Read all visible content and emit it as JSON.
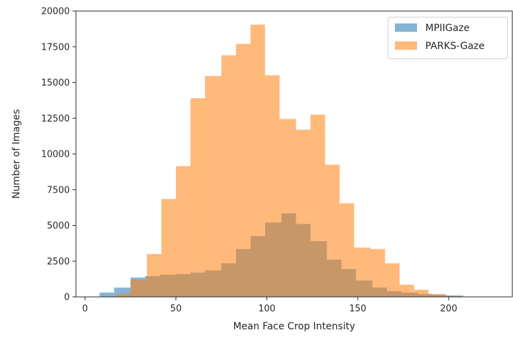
{
  "chart_data": {
    "type": "bar",
    "subtype": "overlaid-histogram",
    "xlabel": "Mean Face Crop Intensity",
    "ylabel": "Number of Images",
    "xlim": [
      -5,
      235
    ],
    "ylim": [
      0,
      20000
    ],
    "x_ticks": [
      0,
      50,
      100,
      150,
      200
    ],
    "y_ticks": [
      0,
      2500,
      5000,
      7500,
      10000,
      12500,
      15000,
      17500,
      20000
    ],
    "legend_position": "top-right",
    "series": [
      {
        "name": "MPIIGaze",
        "color": "#1f77b4",
        "opacity": 0.55,
        "bins": [
          {
            "x0": 8,
            "x1": 16,
            "value": 300
          },
          {
            "x0": 16,
            "x1": 25,
            "value": 650
          },
          {
            "x0": 25,
            "x1": 33,
            "value": 1350
          },
          {
            "x0": 33,
            "x1": 41,
            "value": 1450
          },
          {
            "x0": 41,
            "x1": 50,
            "value": 1550
          },
          {
            "x0": 50,
            "x1": 58,
            "value": 1600
          },
          {
            "x0": 58,
            "x1": 66,
            "value": 1700
          },
          {
            "x0": 66,
            "x1": 75,
            "value": 1850
          },
          {
            "x0": 75,
            "x1": 83,
            "value": 2350
          },
          {
            "x0": 83,
            "x1": 91,
            "value": 3350
          },
          {
            "x0": 91,
            "x1": 99,
            "value": 4250
          },
          {
            "x0": 99,
            "x1": 108,
            "value": 5200
          },
          {
            "x0": 108,
            "x1": 116,
            "value": 5850
          },
          {
            "x0": 116,
            "x1": 124,
            "value": 5100
          },
          {
            "x0": 124,
            "x1": 133,
            "value": 3900
          },
          {
            "x0": 133,
            "x1": 141,
            "value": 2600
          },
          {
            "x0": 141,
            "x1": 149,
            "value": 1950
          },
          {
            "x0": 149,
            "x1": 158,
            "value": 1150
          },
          {
            "x0": 158,
            "x1": 166,
            "value": 650
          },
          {
            "x0": 166,
            "x1": 174,
            "value": 400
          },
          {
            "x0": 174,
            "x1": 183,
            "value": 300
          },
          {
            "x0": 183,
            "x1": 191,
            "value": 200
          },
          {
            "x0": 191,
            "x1": 199,
            "value": 150
          },
          {
            "x0": 199,
            "x1": 208,
            "value": 100
          }
        ]
      },
      {
        "name": "PARKS-Gaze",
        "color": "#ff7f0e",
        "opacity": 0.55,
        "bins": [
          {
            "x0": 17,
            "x1": 25,
            "value": 200
          },
          {
            "x0": 25,
            "x1": 34,
            "value": 1200
          },
          {
            "x0": 34,
            "x1": 42,
            "value": 3000
          },
          {
            "x0": 42,
            "x1": 50,
            "value": 6850
          },
          {
            "x0": 50,
            "x1": 58,
            "value": 9150
          },
          {
            "x0": 58,
            "x1": 66,
            "value": 13900
          },
          {
            "x0": 66,
            "x1": 75,
            "value": 15450
          },
          {
            "x0": 75,
            "x1": 83,
            "value": 16900
          },
          {
            "x0": 83,
            "x1": 91,
            "value": 17700
          },
          {
            "x0": 91,
            "x1": 99,
            "value": 19050
          },
          {
            "x0": 99,
            "x1": 107,
            "value": 15500
          },
          {
            "x0": 107,
            "x1": 116,
            "value": 12450
          },
          {
            "x0": 116,
            "x1": 124,
            "value": 11700
          },
          {
            "x0": 124,
            "x1": 132,
            "value": 12750
          },
          {
            "x0": 132,
            "x1": 140,
            "value": 9250
          },
          {
            "x0": 140,
            "x1": 148,
            "value": 6550
          },
          {
            "x0": 148,
            "x1": 157,
            "value": 3450
          },
          {
            "x0": 157,
            "x1": 165,
            "value": 3350
          },
          {
            "x0": 165,
            "x1": 173,
            "value": 2350
          },
          {
            "x0": 173,
            "x1": 181,
            "value": 850
          },
          {
            "x0": 181,
            "x1": 189,
            "value": 500
          },
          {
            "x0": 189,
            "x1": 198,
            "value": 200
          },
          {
            "x0": 198,
            "x1": 206,
            "value": 50
          }
        ]
      }
    ]
  }
}
